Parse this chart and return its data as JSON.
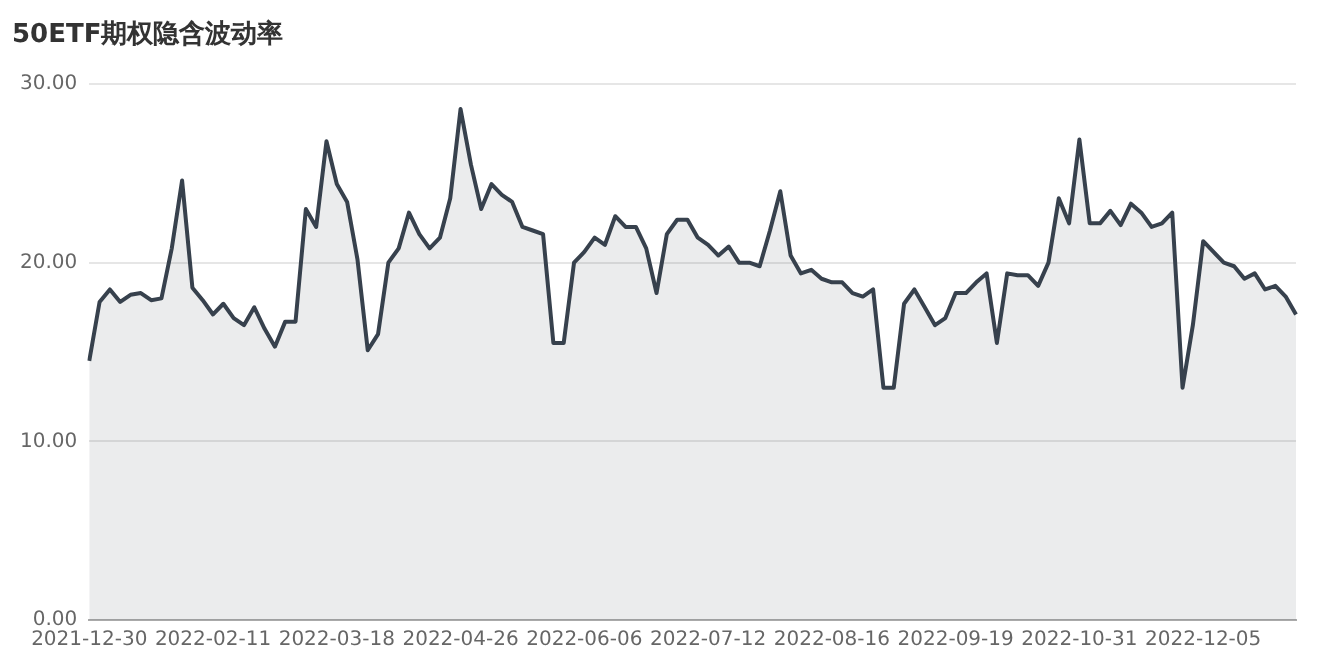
{
  "chart_data": {
    "type": "area",
    "title": "50ETF期权隐含波动率",
    "categories": [
      "2021-12-30",
      null,
      null,
      null,
      null,
      null,
      null,
      null,
      null,
      null,
      null,
      null,
      "2022-02-11",
      null,
      null,
      null,
      null,
      null,
      null,
      null,
      null,
      null,
      null,
      null,
      "2022-03-18",
      null,
      null,
      null,
      null,
      null,
      null,
      null,
      null,
      null,
      null,
      null,
      "2022-04-26",
      null,
      null,
      null,
      null,
      null,
      null,
      null,
      null,
      null,
      null,
      null,
      "2022-06-06",
      null,
      null,
      null,
      null,
      null,
      null,
      null,
      null,
      null,
      null,
      null,
      "2022-07-12",
      null,
      null,
      null,
      null,
      null,
      null,
      null,
      null,
      null,
      null,
      null,
      "2022-08-16",
      null,
      null,
      null,
      null,
      null,
      null,
      null,
      null,
      null,
      null,
      null,
      "2022-09-19",
      null,
      null,
      null,
      null,
      null,
      null,
      null,
      null,
      null,
      null,
      null,
      "2022-10-31",
      null,
      null,
      null,
      null,
      null,
      null,
      null,
      null,
      null,
      null,
      null,
      "2022-12-05",
      null,
      null,
      null,
      null,
      null,
      null,
      null,
      null,
      null
    ],
    "series": [
      {
        "color": "#37414d",
        "values": [
          14.5,
          17.8,
          18.5,
          17.8,
          18.2,
          18.3,
          17.9,
          18.0,
          20.8,
          24.6,
          18.6,
          17.9,
          17.1,
          17.7,
          16.9,
          16.5,
          17.5,
          16.3,
          15.3,
          16.7,
          16.7,
          23.0,
          22.0,
          26.8,
          24.4,
          23.4,
          20.2,
          15.1,
          16.0,
          20.0,
          20.8,
          22.8,
          21.6,
          20.8,
          21.4,
          23.6,
          28.6,
          25.5,
          23.0,
          24.4,
          23.8,
          23.4,
          22.0,
          21.8,
          21.6,
          15.5,
          15.5,
          20.0,
          20.6,
          21.4,
          21.0,
          22.6,
          22.0,
          22.0,
          20.8,
          18.3,
          21.6,
          22.4,
          22.4,
          21.4,
          21.0,
          20.4,
          20.9,
          20.0,
          20.0,
          19.8,
          21.8,
          24.0,
          20.4,
          19.4,
          19.6,
          19.1,
          18.9,
          18.9,
          18.3,
          18.1,
          18.5,
          13.0,
          13.0,
          17.7,
          18.5,
          17.5,
          16.5,
          16.9,
          18.3,
          18.3,
          18.9,
          19.4,
          15.5,
          19.4,
          19.3,
          19.3,
          18.7,
          20.0,
          23.6,
          22.2,
          26.9,
          22.2,
          22.2,
          22.9,
          22.1,
          23.3,
          22.8,
          22.0,
          22.2,
          22.8,
          13.0,
          16.5,
          21.2,
          20.6,
          20.0,
          19.8,
          19.1,
          19.4,
          18.5,
          18.7,
          18.1,
          17.1
        ]
      }
    ],
    "ylim": [
      0,
      30
    ],
    "yticks": [
      {
        "value": 0,
        "label": "0.00"
      },
      {
        "value": 10,
        "label": "10.00"
      },
      {
        "value": 20,
        "label": "20.00"
      },
      {
        "value": 30,
        "label": "30.00"
      }
    ],
    "grid": "y",
    "marker": "none",
    "line_style": "solid"
  }
}
